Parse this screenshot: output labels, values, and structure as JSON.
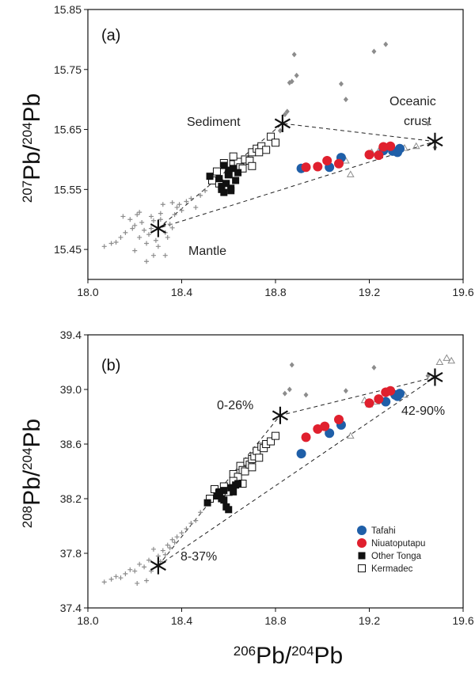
{
  "colors": {
    "tafahi": "#1f5fa8",
    "niuatoputapu": "#e0202e",
    "other_tonga": "#111111",
    "kermadec": "#ffffff",
    "gray_marker": "#8c8c8c",
    "axis": "#111111"
  },
  "x_axis_title": {
    "base": "Pb/",
    "sup1": "206",
    "sup2": "204",
    "end": "Pb"
  },
  "chart_data": [
    {
      "type": "scatter",
      "panel_label": "(a)",
      "xlim": [
        18.0,
        19.6
      ],
      "ylim": [
        15.4,
        15.85
      ],
      "xticks": [
        "18.0",
        "18.4",
        "18.8",
        "19.2",
        "19.6"
      ],
      "yticks": [
        "15.45",
        "15.55",
        "15.65",
        "15.75",
        "15.85"
      ],
      "ylabel": {
        "sup1": "207",
        "mid": "Pb/",
        "sup2": "204",
        "end": "Pb"
      },
      "endmembers": [
        {
          "name": "Mantle",
          "x": 18.3,
          "y": 15.485
        },
        {
          "name": "Sediment",
          "x": 18.83,
          "y": 15.66
        },
        {
          "name": "Oceanic crust",
          "x": 19.48,
          "y": 15.63
        }
      ],
      "annotations": [
        "Sediment",
        "Oceanic",
        "crust",
        "Mantle"
      ],
      "series": [
        {
          "name": "Tafahi",
          "marker": "circle",
          "x": [
            18.91,
            19.03,
            19.08,
            19.26,
            19.3,
            19.32,
            19.33
          ],
          "y": [
            15.585,
            15.587,
            15.603,
            15.615,
            15.614,
            15.612,
            15.618
          ]
        },
        {
          "name": "Niuatoputapu",
          "marker": "circle",
          "x": [
            18.93,
            18.98,
            19.02,
            19.07,
            19.2,
            19.24,
            19.26,
            19.29
          ],
          "y": [
            15.587,
            15.588,
            15.598,
            15.593,
            15.608,
            15.607,
            15.621,
            15.622
          ]
        },
        {
          "name": "Other Tonga",
          "marker": "square-filled",
          "x": [
            18.52,
            18.56,
            18.57,
            18.58,
            18.59,
            18.6,
            18.61,
            18.62,
            18.63,
            18.58,
            18.6,
            18.64,
            18.57,
            18.61
          ],
          "y": [
            15.572,
            15.568,
            15.555,
            15.545,
            15.56,
            15.575,
            15.552,
            15.585,
            15.565,
            15.59,
            15.582,
            15.578,
            15.55,
            15.548
          ]
        },
        {
          "name": "Kermadec",
          "marker": "square-open",
          "x": [
            18.53,
            18.55,
            18.58,
            18.6,
            18.62,
            18.64,
            18.65,
            18.67,
            18.69,
            18.7,
            18.72,
            18.74,
            18.76,
            18.78,
            18.8,
            18.62,
            18.66,
            18.7,
            18.73,
            18.56
          ],
          "y": [
            15.565,
            15.58,
            15.594,
            15.575,
            15.592,
            15.596,
            15.587,
            15.6,
            15.598,
            15.612,
            15.618,
            15.622,
            15.616,
            15.638,
            15.628,
            15.605,
            15.585,
            15.589,
            15.612,
            15.56
          ]
        },
        {
          "name": "Mantle field",
          "marker": "plus-gray",
          "x": [
            18.07,
            18.1,
            18.12,
            18.14,
            18.16,
            18.18,
            18.19,
            18.2,
            18.21,
            18.22,
            18.23,
            18.24,
            18.25,
            18.26,
            18.27,
            18.28,
            18.29,
            18.3,
            18.31,
            18.32,
            18.33,
            18.34,
            18.35,
            18.36,
            18.37,
            18.38,
            18.4,
            18.42,
            18.44,
            18.46,
            18.48,
            18.5,
            18.15,
            18.2,
            18.25,
            18.28,
            18.33,
            18.36,
            18.22,
            18.27,
            18.31,
            18.39
          ],
          "y": [
            15.455,
            15.46,
            15.462,
            15.47,
            15.478,
            15.5,
            15.485,
            15.49,
            15.508,
            15.47,
            15.495,
            15.482,
            15.46,
            15.475,
            15.505,
            15.44,
            15.465,
            15.455,
            15.51,
            15.525,
            15.44,
            15.47,
            15.492,
            15.486,
            15.508,
            15.52,
            15.515,
            15.53,
            15.535,
            15.52,
            15.54,
            15.548,
            15.505,
            15.448,
            15.43,
            15.498,
            15.478,
            15.528,
            15.512,
            15.485,
            15.5,
            15.525
          ]
        },
        {
          "name": "Sediment field",
          "marker": "diamond-gray",
          "x": [
            18.82,
            18.84,
            18.85,
            18.86,
            18.87,
            18.88,
            18.89,
            19.08,
            19.1,
            19.22,
            19.27,
            19.45,
            19.48
          ],
          "y": [
            15.648,
            15.675,
            15.68,
            15.728,
            15.73,
            15.775,
            15.74,
            15.726,
            15.7,
            15.78,
            15.792,
            15.66,
            15.62
          ]
        },
        {
          "name": "Crust field",
          "marker": "triangle-gray",
          "x": [
            19.1,
            19.12,
            19.21,
            19.24,
            19.3,
            19.35,
            19.4
          ],
          "y": [
            15.598,
            15.575,
            15.612,
            15.614,
            15.62,
            15.619,
            15.622
          ]
        }
      ],
      "mixing_lines": [
        [
          [
            18.3,
            15.485
          ],
          [
            18.83,
            15.66
          ],
          [
            19.48,
            15.63
          ],
          [
            18.3,
            15.485
          ]
        ]
      ]
    },
    {
      "type": "scatter",
      "panel_label": "(b)",
      "xlim": [
        18.0,
        19.6
      ],
      "ylim": [
        37.4,
        39.4
      ],
      "xticks": [
        "18.0",
        "18.4",
        "18.8",
        "19.2",
        "19.6"
      ],
      "yticks": [
        "37.4",
        "37.8",
        "38.2",
        "38.6",
        "39.0",
        "39.4"
      ],
      "ylabel": {
        "sup1": "208",
        "mid": "Pb/",
        "sup2": "204",
        "end": "Pb"
      },
      "endmembers": [
        {
          "name": "Mantle",
          "x": 18.3,
          "y": 37.71
        },
        {
          "name": "Sediment",
          "x": 18.82,
          "y": 38.81
        },
        {
          "name": "Oceanic crust",
          "x": 19.48,
          "y": 39.09
        }
      ],
      "annotations": [
        "0-26%",
        "42-90%",
        "8-37%"
      ],
      "series": [
        {
          "name": "Tafahi",
          "marker": "circle",
          "x": [
            18.91,
            19.03,
            19.08,
            19.27,
            19.31,
            19.32,
            19.33
          ],
          "y": [
            38.53,
            38.68,
            38.74,
            38.91,
            38.96,
            38.95,
            38.97
          ]
        },
        {
          "name": "Niuatoputapu",
          "marker": "circle",
          "x": [
            18.93,
            18.98,
            19.01,
            19.07,
            19.2,
            19.24,
            19.27,
            19.29
          ],
          "y": [
            38.65,
            38.71,
            38.73,
            38.78,
            38.9,
            38.93,
            38.98,
            38.99
          ]
        },
        {
          "name": "Other Tonga",
          "marker": "square-filled",
          "x": [
            18.51,
            18.55,
            18.57,
            18.58,
            18.59,
            18.6,
            18.61,
            18.62,
            18.63,
            18.64,
            18.58,
            18.56
          ],
          "y": [
            38.17,
            38.22,
            38.2,
            38.26,
            38.14,
            38.12,
            38.28,
            38.25,
            38.3,
            38.31,
            38.19,
            38.25
          ]
        },
        {
          "name": "Kermadec",
          "marker": "square-open",
          "x": [
            18.52,
            18.54,
            18.56,
            18.58,
            18.6,
            18.62,
            18.64,
            18.65,
            18.66,
            18.67,
            18.68,
            18.69,
            18.7,
            18.71,
            18.72,
            18.73,
            18.74,
            18.75,
            18.76,
            18.78,
            18.8,
            18.62,
            18.66,
            18.7
          ],
          "y": [
            38.2,
            38.27,
            38.24,
            38.29,
            38.25,
            38.38,
            38.36,
            38.44,
            38.41,
            38.4,
            38.47,
            38.45,
            38.49,
            38.51,
            38.55,
            38.5,
            38.58,
            38.57,
            38.6,
            38.62,
            38.66,
            38.33,
            38.31,
            38.43
          ]
        },
        {
          "name": "Mantle field",
          "marker": "plus-gray",
          "x": [
            18.07,
            18.1,
            18.12,
            18.14,
            18.16,
            18.18,
            18.2,
            18.22,
            18.24,
            18.26,
            18.28,
            18.3,
            18.32,
            18.34,
            18.36,
            18.38,
            18.4,
            18.42,
            18.44,
            18.46,
            18.48,
            18.25,
            18.27,
            18.31,
            18.33,
            18.35,
            18.21,
            18.37
          ],
          "y": [
            37.59,
            37.61,
            37.63,
            37.62,
            37.65,
            37.68,
            37.67,
            37.72,
            37.7,
            37.75,
            37.83,
            37.78,
            37.82,
            37.86,
            37.9,
            37.92,
            37.95,
            37.98,
            38.02,
            38.04,
            38.1,
            37.6,
            37.67,
            37.74,
            37.79,
            37.84,
            37.58,
            37.88
          ]
        },
        {
          "name": "Sediment field",
          "marker": "diamond-gray",
          "x": [
            18.84,
            18.86,
            18.87,
            18.93,
            19.1,
            19.22,
            19.45
          ],
          "y": [
            38.97,
            39.0,
            39.18,
            38.96,
            38.99,
            39.16,
            39.1
          ]
        },
        {
          "name": "Crust field",
          "marker": "triangle-gray",
          "x": [
            19.12,
            19.2,
            19.23,
            19.35,
            19.5,
            19.53,
            19.55,
            19.18
          ],
          "y": [
            38.66,
            38.89,
            38.91,
            38.96,
            39.2,
            39.23,
            39.21,
            38.92
          ]
        }
      ],
      "mixing_lines": [
        [
          [
            18.3,
            37.71
          ],
          [
            18.82,
            38.81
          ],
          [
            19.48,
            39.09
          ],
          [
            18.3,
            37.71
          ]
        ]
      ],
      "legend": [
        {
          "label": "Tafahi",
          "marker": "circle",
          "color_key": "tafahi"
        },
        {
          "label": "Niuatoputapu",
          "marker": "circle",
          "color_key": "niuatoputapu"
        },
        {
          "label": "Other Tonga",
          "marker": "square-filled",
          "color_key": "other_tonga"
        },
        {
          "label": "Kermadec",
          "marker": "square-open",
          "color_key": "kermadec"
        }
      ],
      "legend_position": "bottom-right"
    }
  ]
}
